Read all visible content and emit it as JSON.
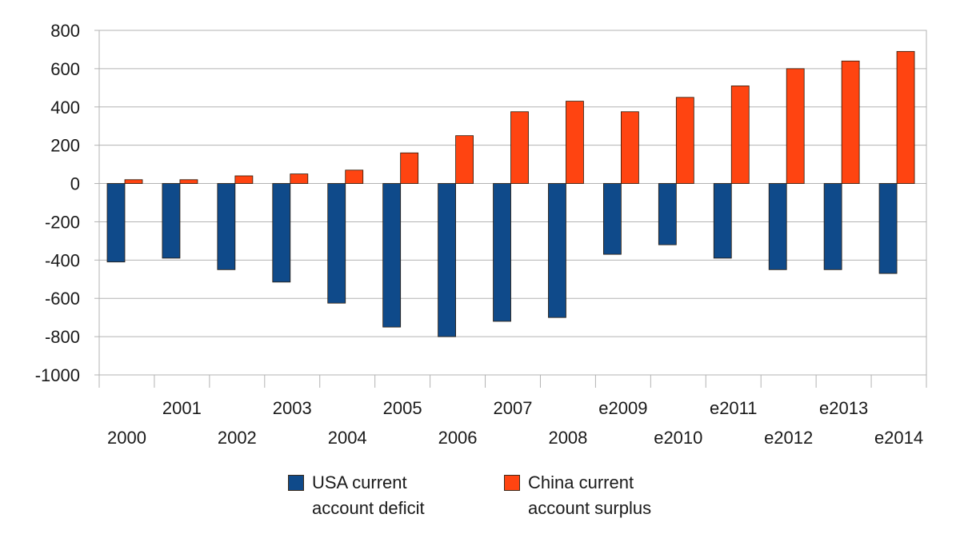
{
  "chart_data": {
    "type": "bar",
    "categories": [
      "2000",
      "2001",
      "2002",
      "2003",
      "2004",
      "2005",
      "2006",
      "2007",
      "2008",
      "e2009",
      "e2010",
      "e2011",
      "e2012",
      "e2013",
      "e2014"
    ],
    "series": [
      {
        "name": "USA current account deficit",
        "color": "#0f4a8a",
        "values": [
          -410,
          -390,
          -450,
          -515,
          -625,
          -750,
          -800,
          -720,
          -700,
          -370,
          -320,
          -390,
          -450,
          -450,
          -470
        ]
      },
      {
        "name": "China current account surplus",
        "color": "#ff4411",
        "values": [
          20,
          20,
          40,
          50,
          70,
          160,
          250,
          375,
          430,
          375,
          450,
          510,
          600,
          640,
          690
        ]
      }
    ],
    "ylim": [
      -1000,
      800
    ],
    "yticks": [
      800,
      600,
      400,
      200,
      0,
      -200,
      -400,
      -600,
      -800,
      -1000
    ],
    "grid": true,
    "legend_position": "bottom",
    "title": "",
    "xlabel": "",
    "ylabel": ""
  }
}
